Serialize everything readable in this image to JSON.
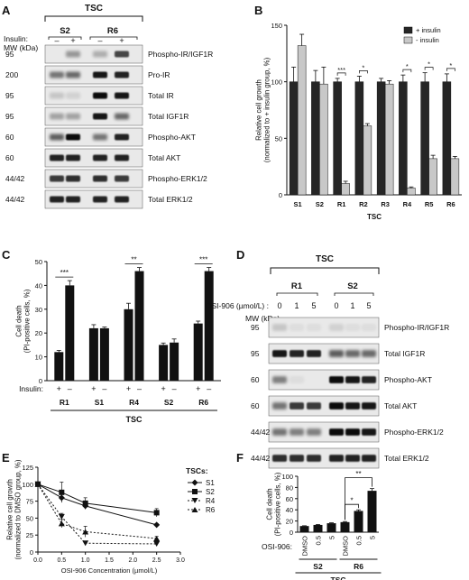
{
  "panels": {
    "A": {
      "letter": "A",
      "group_label": "TSC",
      "lanes": [
        "S2",
        "R6"
      ],
      "insulin_label": "Insulin:",
      "mw_label": "MW (kDa)",
      "insulin_signs": [
        "–",
        "+",
        "–",
        "+"
      ],
      "rows": [
        {
          "mw": "95",
          "label": "Phospho-IR/IGF1R"
        },
        {
          "mw": "200",
          "label": "Pro-IR"
        },
        {
          "mw": "95",
          "label": "Total IR"
        },
        {
          "mw": "95",
          "label": "Total IGF1R"
        },
        {
          "mw": "60",
          "label": "Phospho-AKT"
        },
        {
          "mw": "60",
          "label": "Total AKT"
        },
        {
          "mw": "44/42",
          "label": "Phospho-ERK1/2"
        },
        {
          "mw": "44/42",
          "label": "Total ERK1/2"
        }
      ]
    },
    "B": {
      "letter": "B",
      "group_label": "TSC"
    },
    "C": {
      "letter": "C",
      "group_label": "TSC"
    },
    "D": {
      "letter": "D",
      "group_label": "TSC",
      "lanes": [
        "R1",
        "S2"
      ],
      "osi_label": "OSI-906 (µmol/L) :",
      "mw_label": "MW (kDa)",
      "doses": [
        "0",
        "1",
        "5",
        "0",
        "1",
        "5"
      ],
      "rows": [
        {
          "mw": "95",
          "label": "Phospho-IR/IGF1R"
        },
        {
          "mw": "95",
          "label": "Total IGF1R"
        },
        {
          "mw": "60",
          "label": "Phospho-AKT"
        },
        {
          "mw": "60",
          "label": "Total AKT"
        },
        {
          "mw": "44/42",
          "label": "Phospho-ERK1/2"
        },
        {
          "mw": "44/42",
          "label": "Total ERK1/2"
        }
      ]
    },
    "E": {
      "letter": "E"
    },
    "F": {
      "letter": "F",
      "group_label": "TSC"
    }
  },
  "colors": {
    "dark": "#262626",
    "light": "#c8c8c8",
    "black": "#111111"
  },
  "chart_data": [
    {
      "panel": "B",
      "type": "bar",
      "ylabel": "Relative cell growth\n(normalized to + insulin group, %)",
      "xlabel": "TSC",
      "ylim": [
        0,
        150
      ],
      "yticks": [
        0,
        50,
        100,
        150
      ],
      "categories": [
        "S1",
        "S2",
        "R1",
        "R2",
        "R3",
        "R4",
        "R5",
        "R6"
      ],
      "series": [
        {
          "name": "+ insulin",
          "color": "#262626",
          "values": [
            100,
            100,
            100,
            100,
            100,
            100,
            100,
            100
          ],
          "errors": [
            13,
            10,
            3,
            5,
            3,
            6,
            8,
            7
          ]
        },
        {
          "name": "- insulin",
          "color": "#c8c8c8",
          "values": [
            132,
            98,
            10,
            61,
            98,
            6,
            32,
            32
          ],
          "errors": [
            10,
            15,
            2,
            2,
            3,
            1,
            3,
            2
          ]
        }
      ],
      "significance": [
        {
          "category": "R1",
          "label": "***"
        },
        {
          "category": "R2",
          "label": "*"
        },
        {
          "category": "R4",
          "label": "*"
        },
        {
          "category": "R5",
          "label": "*"
        },
        {
          "category": "R6",
          "label": "*"
        }
      ],
      "legend": "top-right"
    },
    {
      "panel": "C",
      "type": "bar",
      "ylabel": "Cell death\n(PI-positive cells, %)",
      "xlabel": "TSC",
      "x_prefix_label": "Insulin:",
      "ylim": [
        0,
        50
      ],
      "yticks": [
        0,
        10,
        20,
        30,
        40,
        50
      ],
      "categories": [
        "R1",
        "S1",
        "R4",
        "S2",
        "R6"
      ],
      "condition_labels": [
        "+",
        "–"
      ],
      "series": [
        {
          "name": "+",
          "values": [
            12,
            22,
            30,
            15,
            24
          ],
          "errors": [
            0.7,
            1.5,
            2.5,
            0.8,
            1
          ]
        },
        {
          "name": "–",
          "values": [
            40,
            22,
            46,
            16,
            46
          ],
          "errors": [
            2,
            0.5,
            1.5,
            1.5,
            1.5
          ]
        }
      ],
      "significance": [
        {
          "category": "R1",
          "label": "***"
        },
        {
          "category": "R4",
          "label": "**"
        },
        {
          "category": "R6",
          "label": "***"
        }
      ]
    },
    {
      "panel": "E",
      "type": "line",
      "ylabel": "Relative cell growth\n(normalized to DMSO group, %)",
      "xlabel": "OSI-906 Concentration (µmol/L)",
      "xlim": [
        0,
        3
      ],
      "ylim": [
        0,
        125
      ],
      "xticks": [
        "0.0",
        "0.5",
        "1.0",
        "1.5",
        "2.0",
        "2.5",
        "3.0"
      ],
      "yticks": [
        0,
        25,
        50,
        75,
        100,
        125
      ],
      "legend_title": "TSCs:",
      "x": [
        0,
        0.5,
        1.0,
        2.5
      ],
      "series": [
        {
          "name": "S1",
          "style": "solid",
          "marker": "diamond",
          "values": [
            100,
            80,
            68,
            40
          ],
          "errors": [
            2,
            6,
            5,
            2
          ]
        },
        {
          "name": "S2",
          "style": "solid",
          "marker": "square",
          "values": [
            100,
            88,
            72,
            58
          ],
          "errors": [
            2,
            15,
            8,
            6
          ]
        },
        {
          "name": "R4",
          "style": "dotted",
          "marker": "triangle-down",
          "values": [
            100,
            52,
            13,
            12
          ],
          "errors": [
            2,
            5,
            3,
            2
          ]
        },
        {
          "name": "R6",
          "style": "dotted",
          "marker": "triangle-up",
          "values": [
            100,
            42,
            30,
            20
          ],
          "errors": [
            2,
            6,
            8,
            3
          ]
        }
      ],
      "legend": "right"
    },
    {
      "panel": "F",
      "type": "bar",
      "ylabel": "Cell death\n(PI-positive cells, %)",
      "xlabel": "TSC",
      "x_prefix_label": "OSI-906:",
      "ylim": [
        0,
        100
      ],
      "yticks": [
        0,
        20,
        40,
        60,
        80,
        100
      ],
      "groups": [
        "S2",
        "R6"
      ],
      "categories": [
        "DMSO",
        "0.5",
        "5",
        "DMSO",
        "0.5",
        "5"
      ],
      "values": [
        11,
        13,
        16,
        18,
        38,
        74
      ],
      "errors": [
        0.5,
        0.8,
        0.8,
        1,
        2,
        4
      ],
      "significance": [
        {
          "from": 3,
          "to": 4,
          "label": "*"
        },
        {
          "from": 3,
          "to": 5,
          "label": "**"
        }
      ]
    }
  ]
}
